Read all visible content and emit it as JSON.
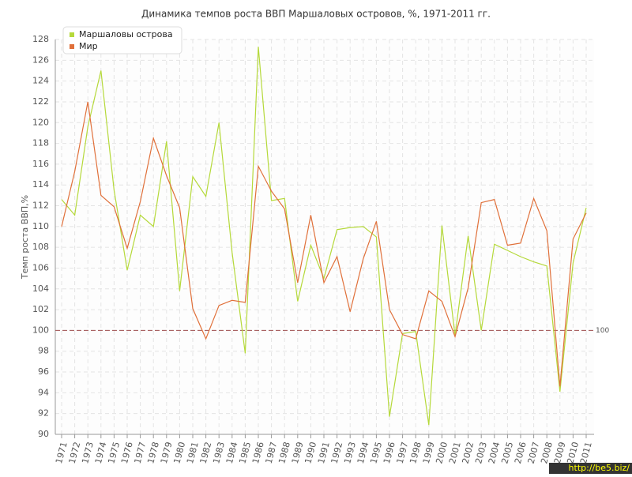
{
  "chart_data": {
    "type": "line",
    "title": "Динамика темпов роста ВВП Маршаловых островов, %, 1971-2011 гг.",
    "y_label": "Темп роста ВВП,%",
    "categories": [
      "1971",
      "1972",
      "1973",
      "1974",
      "1975",
      "1976",
      "1977",
      "1978",
      "1979",
      "1980",
      "1981",
      "1982",
      "1983",
      "1984",
      "1985",
      "1986",
      "1987",
      "1988",
      "1989",
      "1990",
      "1991",
      "1992",
      "1993",
      "1994",
      "1995",
      "1996",
      "1997",
      "1998",
      "1999",
      "2000",
      "2001",
      "2002",
      "2003",
      "2004",
      "2005",
      "2006",
      "2007",
      "2008",
      "2009",
      "2010",
      "2011"
    ],
    "series": [
      {
        "name": "Маршаловы острова",
        "color": "#b5d93a",
        "values": [
          112.6,
          111.1,
          119.6,
          125,
          113.5,
          105.8,
          111.1,
          110,
          118.2,
          103.8,
          114.8,
          112.9,
          120,
          107.5,
          97.8,
          127.3,
          112.5,
          112.7,
          102.8,
          108.2,
          105,
          109.7,
          109.9,
          110,
          109,
          91.7,
          99.7,
          99.9,
          90.9,
          110.1,
          99.5,
          109.1,
          100,
          108.3,
          107.7,
          107.1,
          106.6,
          106.2,
          94.1,
          106.5,
          111.8
        ]
      },
      {
        "name": "Мир",
        "color": "#e0703a",
        "values": [
          110,
          115.3,
          122,
          113,
          111.9,
          107.9,
          112.4,
          118.5,
          114.9,
          111.8,
          102.1,
          99.2,
          102.4,
          102.9,
          102.7,
          115.8,
          113.4,
          111.7,
          104.6,
          111.1,
          104.6,
          107.1,
          101.8,
          106.9,
          110.5,
          102,
          99.6,
          99.2,
          103.8,
          102.8,
          99.4,
          104.1,
          112.3,
          112.6,
          108.2,
          108.4,
          112.7,
          109.6,
          94.6,
          108.8,
          111.3
        ]
      }
    ],
    "ylim": [
      90,
      128
    ],
    "yticks": [
      90,
      92,
      94,
      96,
      98,
      100,
      102,
      104,
      106,
      108,
      110,
      112,
      114,
      116,
      118,
      120,
      122,
      124,
      126,
      128
    ],
    "reference_line": 100,
    "grid": true,
    "legend": "top-left",
    "watermark": "http://be5.biz/"
  }
}
